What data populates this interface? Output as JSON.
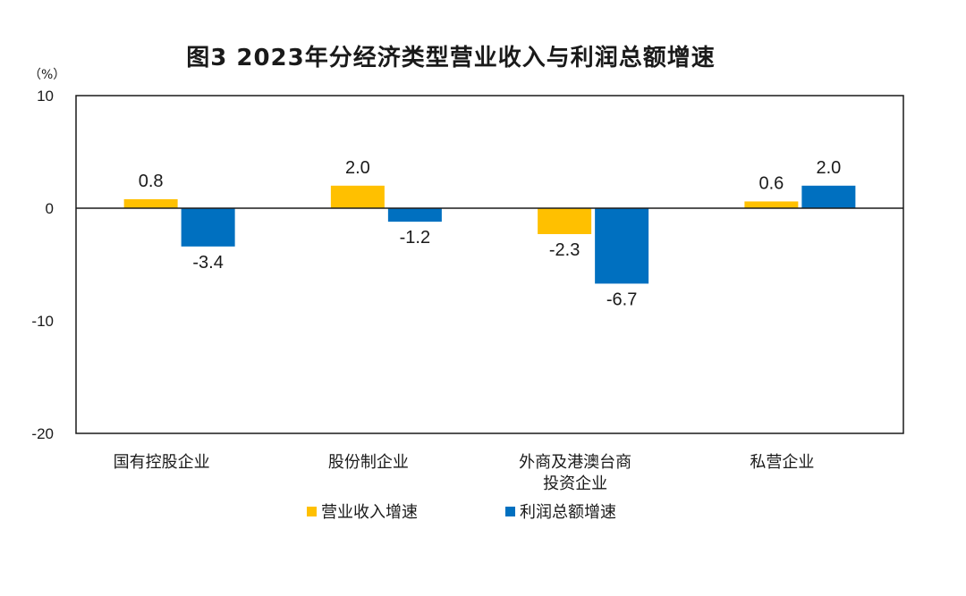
{
  "chart_data": {
    "type": "bar",
    "title": "图3  2023年分经济类型营业收入与利润总额增速",
    "ylabel": "（%）",
    "xlabel": "",
    "ylim": [
      -20,
      10
    ],
    "yticks": [
      "10",
      "0",
      "-10",
      "-20"
    ],
    "grid": false,
    "legend_position": "bottom",
    "categories": [
      [
        "国有控股企业"
      ],
      [
        "股份制企业"
      ],
      [
        "外商及港澳台商",
        "投资企业"
      ],
      [
        "私营企业"
      ]
    ],
    "series": [
      {
        "name": "营业收入增速",
        "color": "#FFC000",
        "values": [
          0.8,
          2.0,
          -2.3,
          0.6
        ],
        "labels": [
          "0.8",
          "2.0",
          "-2.3",
          "0.6"
        ]
      },
      {
        "name": "利润总额增速",
        "color": "#0070C0",
        "values": [
          -3.4,
          -1.2,
          -6.7,
          2.0
        ],
        "labels": [
          "-3.4",
          "-1.2",
          "-6.7",
          "2.0"
        ]
      }
    ]
  }
}
